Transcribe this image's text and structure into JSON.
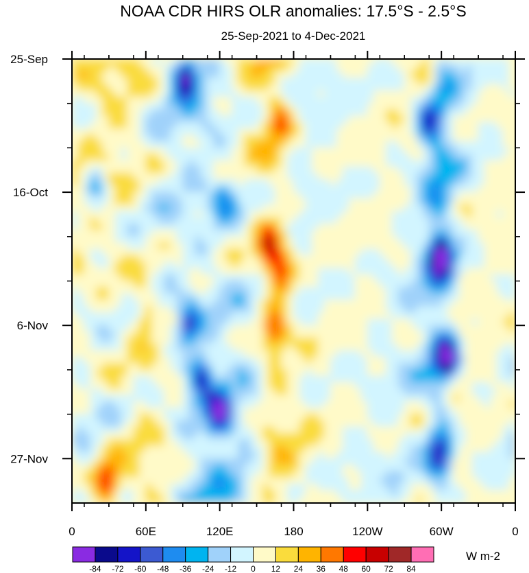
{
  "chart_data": {
    "type": "heatmap",
    "title": "NOAA CDR HIRS OLR anomalies: 17.5°S - 2.5°S",
    "subtitle": "25-Sep-2021 to 4-Dec-2021",
    "xlabel": "",
    "ylabel": "",
    "x_ticks": [
      "0",
      "60E",
      "120E",
      "180",
      "120W",
      "60W",
      "0"
    ],
    "x_range": [
      0,
      360
    ],
    "y_ticks": [
      "25-Sep",
      "16-Oct",
      "6-Nov",
      "27-Nov"
    ],
    "y_range": [
      "25-Sep-2021",
      "4-Dec-2021"
    ],
    "colorbar": {
      "label": "W m-2",
      "levels": [
        "-84",
        "-72",
        "-60",
        "-48",
        "-36",
        "-24",
        "-12",
        "0",
        "12",
        "24",
        "36",
        "48",
        "60",
        "72",
        "84"
      ],
      "colors": [
        "#8a2be2",
        "#0a0a8c",
        "#1414c8",
        "#3c5ad2",
        "#1e8cf0",
        "#00b4f0",
        "#a0d2fa",
        "#d2f5ff",
        "#fffac8",
        "#fadc3c",
        "#ffb400",
        "#ff7800",
        "#ff0000",
        "#c80000",
        "#a02828",
        "#ff6eb4"
      ]
    },
    "anomaly_features": [
      {
        "lon": 20,
        "day": 20,
        "value": -30
      },
      {
        "lon": 28,
        "day": 67,
        "value": 60
      },
      {
        "lon": 60,
        "day": 40,
        "value": 30
      },
      {
        "lon": 92,
        "day": 3,
        "value": -75
      },
      {
        "lon": 95,
        "day": 42,
        "value": -55
      },
      {
        "lon": 105,
        "day": 50,
        "value": -60
      },
      {
        "lon": 120,
        "day": 56,
        "value": -70
      },
      {
        "lon": 125,
        "day": 22,
        "value": -40
      },
      {
        "lon": 160,
        "day": 30,
        "value": 50
      },
      {
        "lon": 170,
        "day": 34,
        "value": 50
      },
      {
        "lon": 165,
        "day": 43,
        "value": 40
      },
      {
        "lon": 170,
        "day": 10,
        "value": 30
      },
      {
        "lon": 290,
        "day": 10,
        "value": -50
      },
      {
        "lon": 300,
        "day": 31,
        "value": -80
      },
      {
        "lon": 305,
        "day": 47,
        "value": -75
      },
      {
        "lon": 300,
        "day": 62,
        "value": -50
      },
      {
        "lon": 290,
        "day": 2,
        "value": 30
      }
    ]
  }
}
